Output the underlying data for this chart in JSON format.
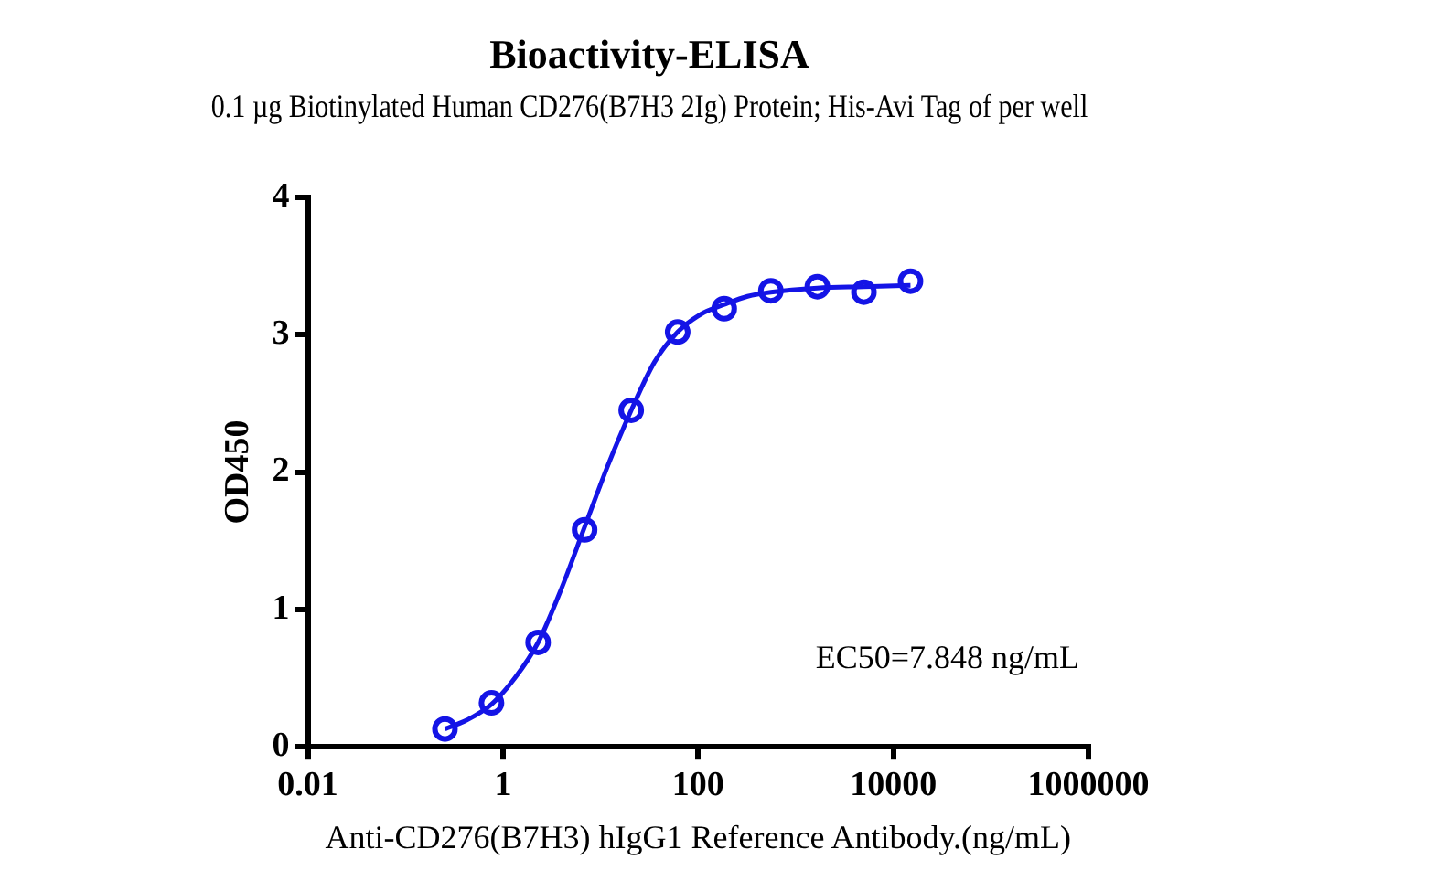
{
  "chart_data": {
    "type": "scatter",
    "title": "Bioactivity-ELISA",
    "subtitle": "0.1 µg Biotinylated Human CD276(B7H3 2Ig) Protein; His-Avi Tag of per well",
    "xlabel": "Anti-CD276(B7H3) hIgG1 Reference Antibody.(ng/mL)",
    "ylabel": "OD450",
    "log": "x",
    "grid": false,
    "legend": false,
    "marker": "circle",
    "xlim": [
      0.01,
      1000000
    ],
    "xticks": [
      0.01,
      1,
      100,
      10000,
      1000000
    ],
    "ylim": [
      0,
      4
    ],
    "yticks": [
      0,
      1,
      2,
      3,
      4
    ],
    "annotations": [
      "EC50=7.848 ng/mL"
    ],
    "series": [
      {
        "type": "scatter",
        "color": "#1414e6",
        "x": [
          0.254,
          0.762,
          2.29,
          6.86,
          20.6,
          61.7,
          185,
          556,
          1667,
          5000,
          15000
        ],
        "values": [
          0.13,
          0.32,
          0.76,
          1.58,
          2.45,
          3.02,
          3.19,
          3.32,
          3.35,
          3.31,
          3.39
        ]
      },
      {
        "type": "line",
        "color": "#1414e6",
        "marker": "none",
        "x": [
          0.254,
          0.44,
          0.762,
          1.32,
          2.29,
          3.96,
          6.86,
          11.9,
          20.6,
          35.6,
          61.7,
          107,
          185,
          321,
          556,
          1667,
          5000,
          15000
        ],
        "values": [
          0.13,
          0.2,
          0.31,
          0.5,
          0.76,
          1.15,
          1.6,
          2.05,
          2.45,
          2.8,
          3.02,
          3.15,
          3.22,
          3.28,
          3.31,
          3.34,
          3.35,
          3.36
        ]
      }
    ]
  }
}
